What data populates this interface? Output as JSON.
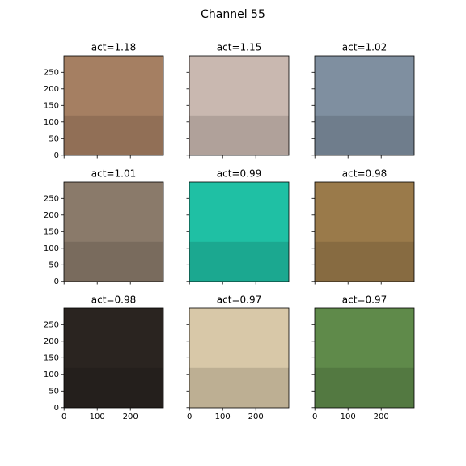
{
  "chart_data": {
    "type": "image-grid",
    "title": "Channel 55",
    "xlim": [
      -0.5,
      299.5
    ],
    "ylim": [
      299.5,
      -0.5
    ],
    "xticks": [
      0,
      100,
      200
    ],
    "yticks": [
      0,
      50,
      100,
      150,
      200,
      250
    ],
    "panels": [
      {
        "title": "act=1.18",
        "color": "#a57f62"
      },
      {
        "title": "act=1.15",
        "color": "#c9b8b0"
      },
      {
        "title": "act=1.02",
        "color": "#7f8fa0"
      },
      {
        "title": "act=1.01",
        "color": "#8a7a6a"
      },
      {
        "title": "act=0.99",
        "color": "#1fc0a4"
      },
      {
        "title": "act=0.98",
        "color": "#9a7a4a"
      },
      {
        "title": "act=0.98",
        "color": "#2a2420"
      },
      {
        "title": "act=0.97",
        "color": "#d8c8a8"
      },
      {
        "title": "act=0.97",
        "color": "#5f8a4a"
      }
    ]
  }
}
